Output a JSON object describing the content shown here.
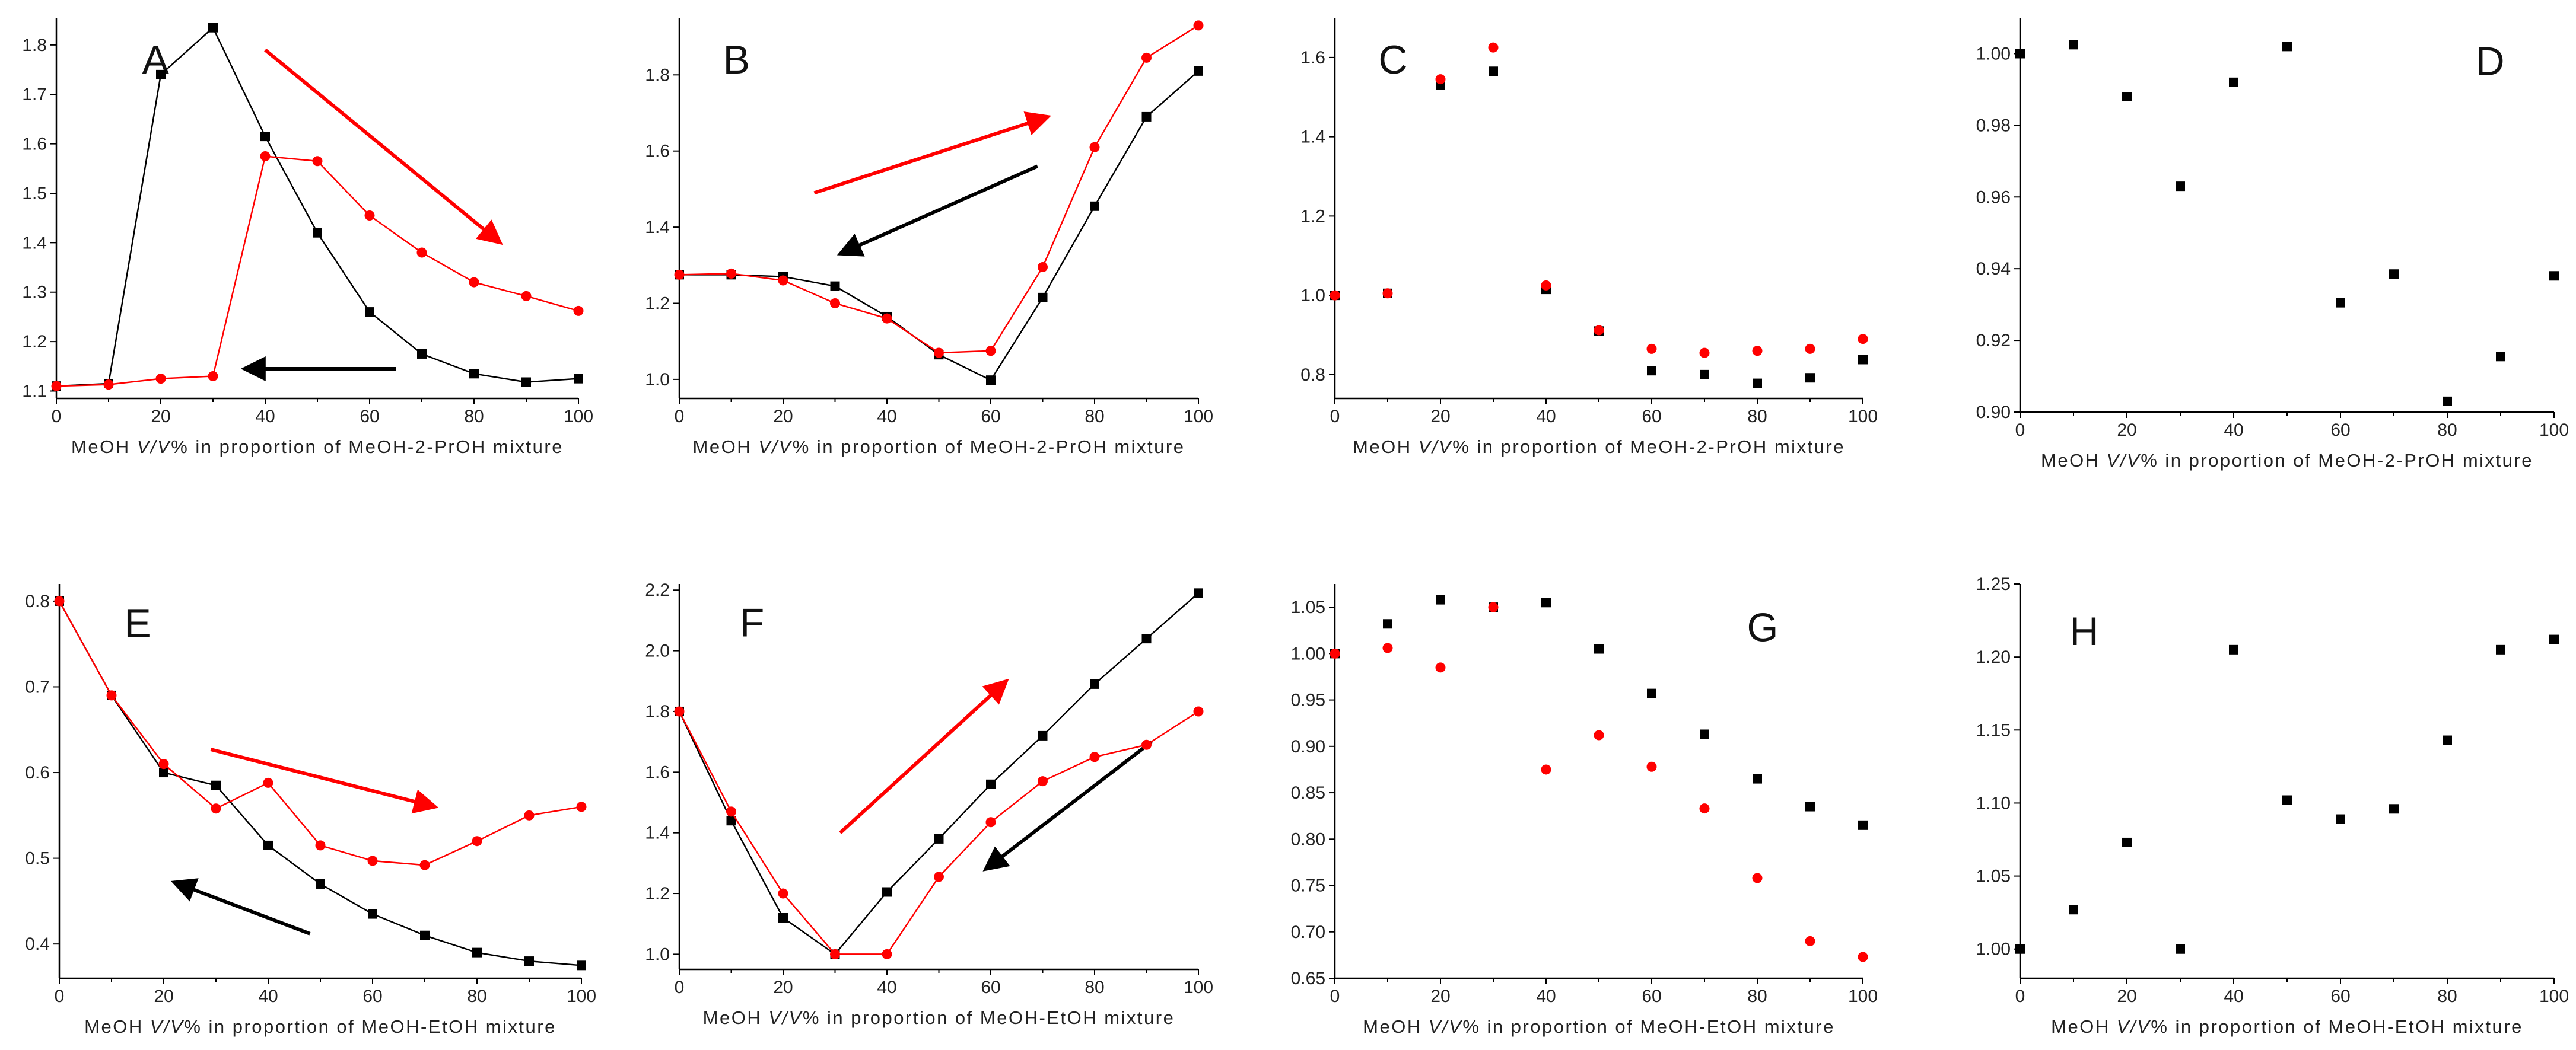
{
  "colors": {
    "black": "#000000",
    "red": "#ff0000"
  },
  "chart_data": [
    {
      "id": "A",
      "type": "line",
      "panel_label": "A",
      "xlabel": {
        "pre": "MeOH ",
        "ital": "V/V",
        "post": "% in proportion of MeOH-2-PrOH mixture"
      },
      "xlim": [
        0,
        100
      ],
      "ylim": [
        1.085,
        1.855
      ],
      "xticks": [
        0,
        10,
        20,
        30,
        40,
        50,
        60,
        70,
        80,
        90,
        100
      ],
      "xtick_labels": [
        "0",
        "",
        "20",
        "",
        "40",
        "",
        "60",
        "",
        "80",
        "",
        "100"
      ],
      "yticks": [
        1.1,
        1.2,
        1.3,
        1.4,
        1.5,
        1.6,
        1.7,
        1.8
      ],
      "ytick_labels": [
        "1.1",
        "1.2",
        "1.3",
        "1.4",
        "1.5",
        "1.6",
        "1.7",
        "1.8"
      ],
      "series": [
        {
          "name": "black",
          "color": "#000000",
          "marker": "square",
          "connect": true,
          "x": [
            0,
            10,
            20,
            30,
            40,
            50,
            60,
            70,
            80,
            90,
            100
          ],
          "y": [
            1.11,
            1.115,
            1.74,
            1.835,
            1.615,
            1.42,
            1.26,
            1.175,
            1.135,
            1.118,
            1.125
          ]
        },
        {
          "name": "red",
          "color": "#ff0000",
          "marker": "circle",
          "connect": true,
          "x": [
            0,
            10,
            20,
            30,
            40,
            50,
            60,
            70,
            80,
            90,
            100
          ],
          "y": [
            1.11,
            1.113,
            1.125,
            1.13,
            1.575,
            1.565,
            1.455,
            1.38,
            1.32,
            1.292,
            1.262
          ]
        }
      ],
      "arrows": [
        {
          "color": "#ff0000",
          "from": [
            40,
            1.79
          ],
          "to": [
            85,
            1.4
          ]
        },
        {
          "color": "#000000",
          "from": [
            65,
            1.145
          ],
          "to": [
            36,
            1.145
          ]
        }
      ]
    },
    {
      "id": "B",
      "type": "line",
      "panel_label": "B",
      "xlabel": {
        "pre": "MeOH ",
        "ital": "V/V",
        "post": "% in proportion of MeOH-2-PrOH mixture"
      },
      "xlim": [
        0,
        100
      ],
      "ylim": [
        0.95,
        1.95
      ],
      "xticks": [
        0,
        10,
        20,
        30,
        40,
        50,
        60,
        70,
        80,
        90,
        100
      ],
      "xtick_labels": [
        "0",
        "",
        "20",
        "",
        "40",
        "",
        "60",
        "",
        "80",
        "",
        "100"
      ],
      "yticks": [
        1.0,
        1.2,
        1.4,
        1.6,
        1.8
      ],
      "ytick_labels": [
        "1.0",
        "1.2",
        "1.4",
        "1.6",
        "1.8"
      ],
      "series": [
        {
          "name": "black",
          "color": "#000000",
          "marker": "square",
          "connect": true,
          "x": [
            0,
            10,
            20,
            30,
            40,
            50,
            60,
            70,
            80,
            90,
            100
          ],
          "y": [
            1.275,
            1.275,
            1.27,
            1.245,
            1.165,
            1.065,
            0.998,
            1.215,
            1.455,
            1.69,
            1.81
          ]
        },
        {
          "name": "red",
          "color": "#ff0000",
          "marker": "circle",
          "connect": true,
          "x": [
            0,
            10,
            20,
            30,
            40,
            50,
            60,
            70,
            80,
            90,
            100
          ],
          "y": [
            1.275,
            1.278,
            1.26,
            1.2,
            1.16,
            1.07,
            1.075,
            1.295,
            1.61,
            1.845,
            1.93
          ]
        }
      ],
      "arrows": [
        {
          "color": "#ff0000",
          "from": [
            26,
            1.49
          ],
          "to": [
            71,
            1.69
          ]
        },
        {
          "color": "#000000",
          "from": [
            69,
            1.56
          ],
          "to": [
            31,
            1.33
          ]
        }
      ]
    },
    {
      "id": "C",
      "type": "scatter",
      "panel_label": "C",
      "xlabel": {
        "pre": "MeOH ",
        "ital": "V/V",
        "post": "% in proportion of MeOH-2-PrOH mixture"
      },
      "xlim": [
        0,
        100
      ],
      "ylim": [
        0.74,
        1.7
      ],
      "xticks": [
        0,
        10,
        20,
        30,
        40,
        50,
        60,
        70,
        80,
        90,
        100
      ],
      "xtick_labels": [
        "0",
        "",
        "20",
        "",
        "40",
        "",
        "60",
        "",
        "80",
        "",
        "100"
      ],
      "yticks": [
        0.8,
        1.0,
        1.2,
        1.4,
        1.6
      ],
      "ytick_labels": [
        "0.8",
        "1.0",
        "1.2",
        "1.4",
        "1.6"
      ],
      "series": [
        {
          "name": "black",
          "color": "#000000",
          "marker": "square",
          "connect": false,
          "x": [
            0,
            10,
            20,
            30,
            40,
            50,
            60,
            70,
            80,
            90,
            100
          ],
          "y": [
            1.0,
            1.005,
            1.53,
            1.565,
            1.015,
            0.91,
            0.81,
            0.8,
            0.778,
            0.792,
            0.838
          ]
        },
        {
          "name": "red",
          "color": "#ff0000",
          "marker": "circle",
          "connect": false,
          "x": [
            0,
            10,
            20,
            30,
            40,
            50,
            60,
            70,
            80,
            90,
            100
          ],
          "y": [
            1.0,
            1.005,
            1.545,
            1.625,
            1.025,
            0.912,
            0.865,
            0.855,
            0.86,
            0.865,
            0.89
          ]
        }
      ],
      "arrows": []
    },
    {
      "id": "D",
      "type": "scatter",
      "panel_label": "D",
      "xlabel": {
        "pre": "MeOH ",
        "ital": "V/V",
        "post": "% in proportion of MeOH-2-PrOH mixture"
      },
      "xlim": [
        0,
        100
      ],
      "ylim": [
        0.9,
        1.01
      ],
      "xticks": [
        0,
        10,
        20,
        30,
        40,
        50,
        60,
        70,
        80,
        90,
        100
      ],
      "xtick_labels": [
        "0",
        "",
        "20",
        "",
        "40",
        "",
        "60",
        "",
        "80",
        "",
        "100"
      ],
      "yticks": [
        0.9,
        0.92,
        0.94,
        0.96,
        0.98,
        1.0
      ],
      "ytick_labels": [
        "0.90",
        "0.92",
        "0.94",
        "0.96",
        "0.98",
        "1.00"
      ],
      "series": [
        {
          "name": "black",
          "color": "#000000",
          "marker": "square",
          "connect": false,
          "x": [
            0,
            10,
            20,
            30,
            40,
            50,
            60,
            70,
            80,
            90,
            100
          ],
          "y": [
            1.0,
            1.0025,
            0.988,
            0.963,
            0.992,
            1.002,
            0.9305,
            0.9385,
            0.903,
            0.9155,
            0.938
          ]
        }
      ],
      "arrows": []
    },
    {
      "id": "E",
      "type": "line",
      "panel_label": "E",
      "xlabel": {
        "pre": "MeOH ",
        "ital": "V/V",
        "post": "% in proportion of MeOH-EtOH mixture"
      },
      "xlim": [
        0,
        100
      ],
      "ylim": [
        0.36,
        0.82
      ],
      "xticks": [
        0,
        10,
        20,
        30,
        40,
        50,
        60,
        70,
        80,
        90,
        100
      ],
      "xtick_labels": [
        "0",
        "",
        "20",
        "",
        "40",
        "",
        "60",
        "",
        "80",
        "",
        "100"
      ],
      "yticks": [
        0.4,
        0.5,
        0.6,
        0.7,
        0.8
      ],
      "ytick_labels": [
        "0.4",
        "0.5",
        "0.6",
        "0.7",
        "0.8"
      ],
      "series": [
        {
          "name": "black",
          "color": "#000000",
          "marker": "square",
          "connect": true,
          "x": [
            0,
            10,
            20,
            30,
            40,
            50,
            60,
            70,
            80,
            90,
            100
          ],
          "y": [
            0.8,
            0.69,
            0.6,
            0.585,
            0.515,
            0.47,
            0.435,
            0.41,
            0.39,
            0.38,
            0.375
          ]
        },
        {
          "name": "red",
          "color": "#ff0000",
          "marker": "circle",
          "connect": true,
          "x": [
            0,
            10,
            20,
            30,
            40,
            50,
            60,
            70,
            80,
            90,
            100
          ],
          "y": [
            0.8,
            0.69,
            0.61,
            0.558,
            0.588,
            0.515,
            0.497,
            0.492,
            0.52,
            0.55,
            0.56
          ]
        }
      ],
      "arrows": [
        {
          "color": "#ff0000",
          "from": [
            29,
            0.627
          ],
          "to": [
            72,
            0.56
          ]
        },
        {
          "color": "#000000",
          "from": [
            48,
            0.412
          ],
          "to": [
            22,
            0.472
          ]
        }
      ]
    },
    {
      "id": "F",
      "type": "line",
      "panel_label": "F",
      "xlabel": {
        "pre": "MeOH ",
        "ital": "V/V",
        "post": "% in proportion of MeOH-EtOH mixture"
      },
      "xlim": [
        0,
        100
      ],
      "ylim": [
        0.95,
        2.22
      ],
      "xticks": [
        0,
        10,
        20,
        30,
        40,
        50,
        60,
        70,
        80,
        90,
        100
      ],
      "xtick_labels": [
        "0",
        "",
        "20",
        "",
        "40",
        "",
        "60",
        "",
        "80",
        "",
        "100"
      ],
      "yticks": [
        1.0,
        1.2,
        1.4,
        1.6,
        1.8,
        2.0,
        2.2
      ],
      "ytick_labels": [
        "1.0",
        "1.2",
        "1.4",
        "1.6",
        "1.8",
        "2.0",
        "2.2"
      ],
      "series": [
        {
          "name": "black",
          "color": "#000000",
          "marker": "square",
          "connect": true,
          "x": [
            0,
            10,
            20,
            30,
            40,
            50,
            60,
            70,
            80,
            90,
            100
          ],
          "y": [
            1.8,
            1.44,
            1.12,
            1.0,
            1.205,
            1.38,
            1.56,
            1.72,
            1.89,
            2.04,
            2.19
          ]
        },
        {
          "name": "red",
          "color": "#ff0000",
          "marker": "circle",
          "connect": true,
          "x": [
            0,
            10,
            20,
            30,
            40,
            50,
            60,
            70,
            80,
            90,
            100
          ],
          "y": [
            1.8,
            1.47,
            1.2,
            1.0,
            1.0,
            1.255,
            1.435,
            1.57,
            1.65,
            1.69,
            1.8
          ]
        }
      ],
      "arrows": [
        {
          "color": "#ff0000",
          "from": [
            31,
            1.4
          ],
          "to": [
            63,
            1.9
          ]
        },
        {
          "color": "#000000",
          "from": [
            91,
            1.7
          ],
          "to": [
            59,
            1.28
          ]
        }
      ]
    },
    {
      "id": "G",
      "type": "scatter",
      "panel_label": "G",
      "xlabel": {
        "pre": "MeOH ",
        "ital": "V/V",
        "post": "% in proportion of MeOH-EtOH mixture"
      },
      "xlim": [
        0,
        100
      ],
      "ylim": [
        0.65,
        1.075
      ],
      "xticks": [
        0,
        10,
        20,
        30,
        40,
        50,
        60,
        70,
        80,
        90,
        100
      ],
      "xtick_labels": [
        "0",
        "",
        "20",
        "",
        "40",
        "",
        "60",
        "",
        "80",
        "",
        "100"
      ],
      "yticks": [
        0.65,
        0.7,
        0.75,
        0.8,
        0.85,
        0.9,
        0.95,
        1.0,
        1.05
      ],
      "ytick_labels": [
        "0.65",
        "0.70",
        "0.75",
        "0.80",
        "0.85",
        "0.90",
        "0.95",
        "1.00",
        "1.05"
      ],
      "series": [
        {
          "name": "black",
          "color": "#000000",
          "marker": "square",
          "connect": false,
          "x": [
            0,
            10,
            20,
            30,
            40,
            50,
            60,
            70,
            80,
            90,
            100
          ],
          "y": [
            1.0,
            1.032,
            1.058,
            1.05,
            1.055,
            1.005,
            0.957,
            0.913,
            0.865,
            0.835,
            0.815
          ]
        },
        {
          "name": "red",
          "color": "#ff0000",
          "marker": "circle",
          "connect": false,
          "x": [
            0,
            10,
            20,
            30,
            40,
            50,
            60,
            70,
            80,
            90,
            100
          ],
          "y": [
            1.0,
            1.006,
            0.985,
            1.05,
            0.875,
            0.912,
            0.878,
            0.833,
            0.758,
            0.69,
            0.673
          ]
        }
      ],
      "arrows": []
    },
    {
      "id": "H",
      "type": "scatter",
      "panel_label": "H",
      "xlabel": {
        "pre": "MeOH ",
        "ital": "V/V",
        "post": "% in proportion of MeOH-EtOH mixture"
      },
      "xlim": [
        0,
        100
      ],
      "ylim": [
        0.98,
        1.25
      ],
      "xticks": [
        0,
        10,
        20,
        30,
        40,
        50,
        60,
        70,
        80,
        90,
        100
      ],
      "xtick_labels": [
        "0",
        "",
        "20",
        "",
        "40",
        "",
        "60",
        "",
        "80",
        "",
        "100"
      ],
      "yticks": [
        1.0,
        1.05,
        1.1,
        1.15,
        1.2,
        1.25
      ],
      "ytick_labels": [
        "1.00",
        "1.05",
        "1.10",
        "1.15",
        "1.20",
        "1.25"
      ],
      "series": [
        {
          "name": "black",
          "color": "#000000",
          "marker": "square",
          "connect": false,
          "x": [
            0,
            10,
            20,
            30,
            40,
            50,
            60,
            70,
            80,
            90,
            100
          ],
          "y": [
            1.0,
            1.027,
            1.073,
            1.0,
            1.205,
            1.102,
            1.089,
            1.096,
            1.143,
            1.205,
            1.212
          ]
        }
      ],
      "arrows": []
    }
  ]
}
